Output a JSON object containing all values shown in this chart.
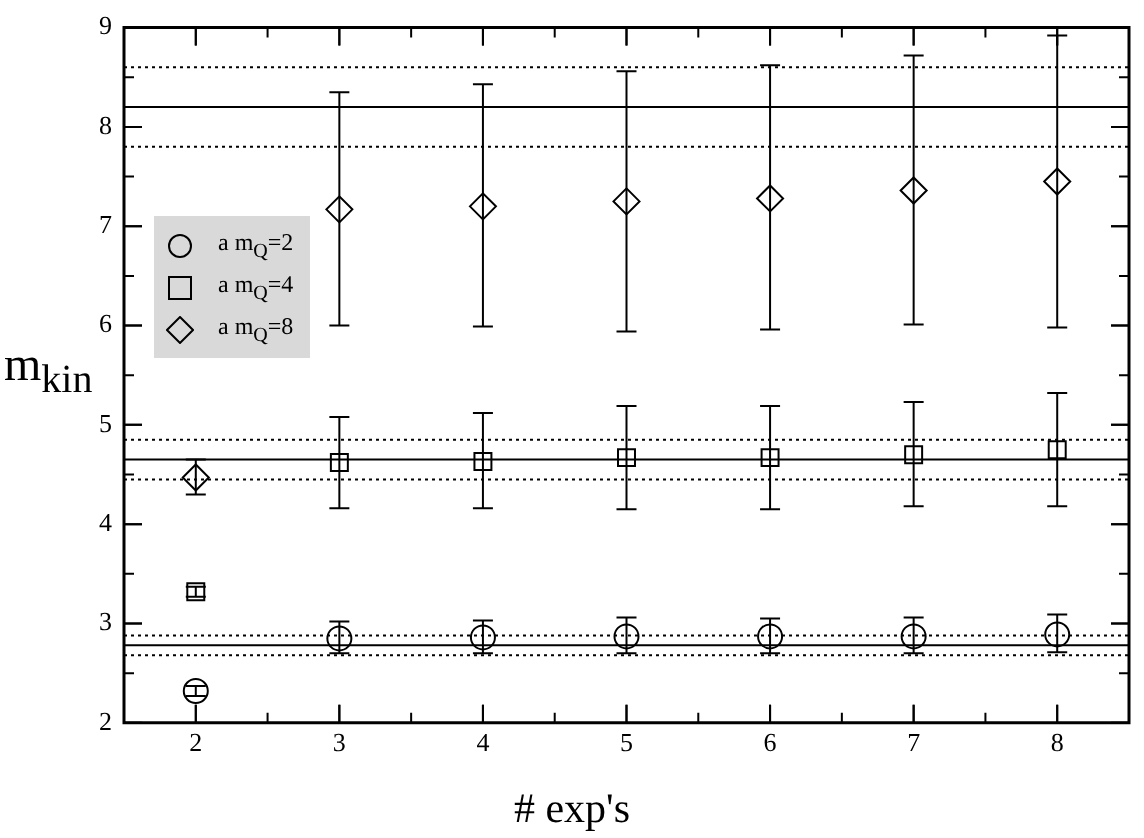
{
  "chart_data": {
    "type": "scatter",
    "xlabel": "# exp's",
    "ylabel": "m$_{kin}$",
    "xlim": [
      1.5,
      8.5
    ],
    "xticks": [
      2,
      3,
      4,
      5,
      6,
      7,
      8
    ],
    "ylim": [
      2,
      9
    ],
    "yticks": [
      2,
      3,
      4,
      5,
      6,
      7,
      8,
      9
    ],
    "grid": false,
    "legend": "left",
    "series": [
      {
        "name": "a m$_{Q}$=2",
        "color": "#000000",
        "marker": "circle",
        "x": [
          2,
          3,
          4,
          5,
          6,
          7,
          8
        ],
        "values": [
          2.32,
          2.85,
          2.86,
          2.87,
          2.87,
          2.87,
          2.89
        ],
        "errors": [
          [
            2.27,
            2.37
          ],
          [
            2.7,
            3.02
          ],
          [
            2.7,
            3.03
          ],
          [
            2.7,
            3.06
          ],
          [
            2.7,
            3.05
          ],
          [
            2.7,
            3.06
          ],
          [
            2.71,
            3.09
          ]
        ]
      },
      {
        "name": "a m$_{Q}$=4",
        "color": "#000000",
        "marker": "square",
        "x": [
          2,
          3,
          4,
          5,
          6,
          7,
          8
        ],
        "values": [
          3.32,
          4.62,
          4.63,
          4.67,
          4.67,
          4.7,
          4.75
        ],
        "errors": [
          [
            3.27,
            3.37
          ],
          [
            4.16,
            5.08
          ],
          [
            4.16,
            5.12
          ],
          [
            4.15,
            5.19
          ],
          [
            4.15,
            5.19
          ],
          [
            4.18,
            5.23
          ],
          [
            4.18,
            5.32
          ]
        ]
      },
      {
        "name": "a m$_{Q}$=8",
        "color": "#000000",
        "marker": "diamond",
        "x": [
          2,
          3,
          4,
          5,
          6,
          7,
          8
        ],
        "values": [
          4.47,
          7.17,
          7.2,
          7.25,
          7.28,
          7.36,
          7.45
        ],
        "errors": [
          [
            4.3,
            4.65
          ],
          [
            6.0,
            8.35
          ],
          [
            5.99,
            8.43
          ],
          [
            5.94,
            8.56
          ],
          [
            5.96,
            8.62
          ],
          [
            6.01,
            8.72
          ],
          [
            5.98,
            8.92
          ]
        ]
      }
    ],
    "ref_lines": [
      {
        "axis": "y",
        "value": 8.2,
        "line_style": "solid",
        "color": "#000000"
      },
      {
        "axis": "y",
        "value": 8.6,
        "line_style": "dotted",
        "color": "#000000"
      },
      {
        "axis": "y",
        "value": 7.8,
        "line_style": "dotted",
        "color": "#000000"
      },
      {
        "axis": "y",
        "value": 4.65,
        "line_style": "solid",
        "color": "#000000"
      },
      {
        "axis": "y",
        "value": 4.85,
        "line_style": "dotted",
        "color": "#000000"
      },
      {
        "axis": "y",
        "value": 4.45,
        "line_style": "dotted",
        "color": "#000000"
      },
      {
        "axis": "y",
        "value": 2.78,
        "line_style": "solid",
        "color": "#000000"
      },
      {
        "axis": "y",
        "value": 2.88,
        "line_style": "dotted",
        "color": "#000000"
      },
      {
        "axis": "y",
        "value": 2.68,
        "line_style": "dotted",
        "color": "#000000"
      }
    ]
  }
}
